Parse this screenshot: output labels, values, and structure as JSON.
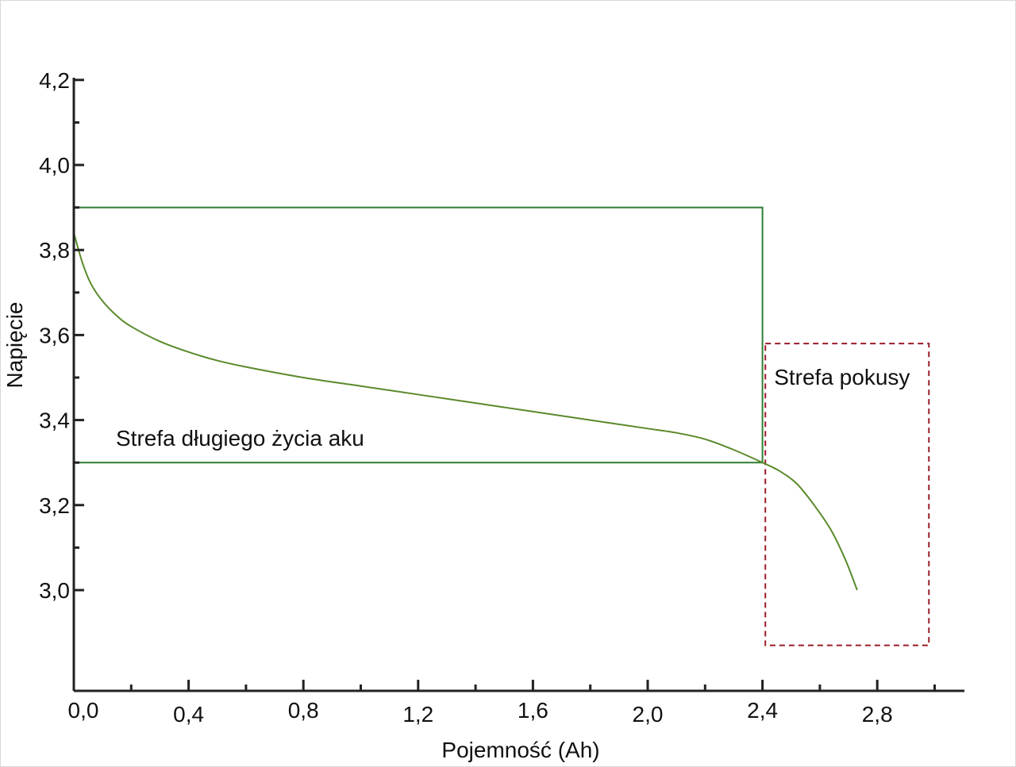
{
  "chart_data": {
    "type": "line",
    "title": "",
    "xlabel": "Pojemność (Ah)",
    "ylabel": "Napięcie",
    "xlim": [
      0,
      3.1
    ],
    "ylim": [
      2.77,
      4.2
    ],
    "x_ticks": [
      {
        "v": 0.0,
        "label": "0,0"
      },
      {
        "v": 0.4,
        "label": "0,4"
      },
      {
        "v": 0.8,
        "label": "0,8"
      },
      {
        "v": 1.2,
        "label": "1,2"
      },
      {
        "v": 1.6,
        "label": "1,6"
      },
      {
        "v": 2.0,
        "label": "2,0"
      },
      {
        "v": 2.4,
        "label": "2,4"
      },
      {
        "v": 2.8,
        "label": "2,8"
      }
    ],
    "x_minor_ticks": [
      0.2,
      0.6,
      1.0,
      1.4,
      1.8,
      2.2,
      2.6,
      3.0
    ],
    "y_ticks": [
      {
        "v": 3.0,
        "label": "3,0"
      },
      {
        "v": 3.2,
        "label": "3,2"
      },
      {
        "v": 3.4,
        "label": "3,4"
      },
      {
        "v": 3.6,
        "label": "3,6"
      },
      {
        "v": 3.8,
        "label": "3,8"
      },
      {
        "v": 4.0,
        "label": "4,0"
      },
      {
        "v": 4.2,
        "label": "4,2"
      }
    ],
    "y_minor_ticks": [
      3.1,
      3.3,
      3.5,
      3.7,
      3.9,
      4.1
    ],
    "grid": false,
    "series": [
      {
        "name": "",
        "color": "#5a8a2a",
        "points": [
          [
            0.0,
            3.84
          ],
          [
            0.03,
            3.77
          ],
          [
            0.06,
            3.72
          ],
          [
            0.1,
            3.68
          ],
          [
            0.15,
            3.645
          ],
          [
            0.2,
            3.62
          ],
          [
            0.3,
            3.585
          ],
          [
            0.4,
            3.56
          ],
          [
            0.5,
            3.54
          ],
          [
            0.6,
            3.525
          ],
          [
            0.8,
            3.5
          ],
          [
            1.0,
            3.48
          ],
          [
            1.2,
            3.46
          ],
          [
            1.4,
            3.44
          ],
          [
            1.6,
            3.42
          ],
          [
            1.8,
            3.4
          ],
          [
            2.0,
            3.38
          ],
          [
            2.1,
            3.37
          ],
          [
            2.2,
            3.355
          ],
          [
            2.3,
            3.33
          ],
          [
            2.4,
            3.3
          ],
          [
            2.46,
            3.28
          ],
          [
            2.52,
            3.25
          ],
          [
            2.58,
            3.2
          ],
          [
            2.64,
            3.14
          ],
          [
            2.69,
            3.07
          ],
          [
            2.73,
            3.0
          ]
        ]
      }
    ],
    "zones": [
      {
        "label": "Strefa długiego życia aku",
        "x0": 0.0,
        "x1": 2.4,
        "y0": 3.3,
        "y1": 3.9,
        "color": "#2e7d32",
        "style": "solid"
      },
      {
        "label": "Strefa pokusy",
        "x0": 2.41,
        "x1": 2.98,
        "y0": 2.87,
        "y1": 3.58,
        "color": "#9b1c2a",
        "style": "dashed"
      }
    ]
  }
}
